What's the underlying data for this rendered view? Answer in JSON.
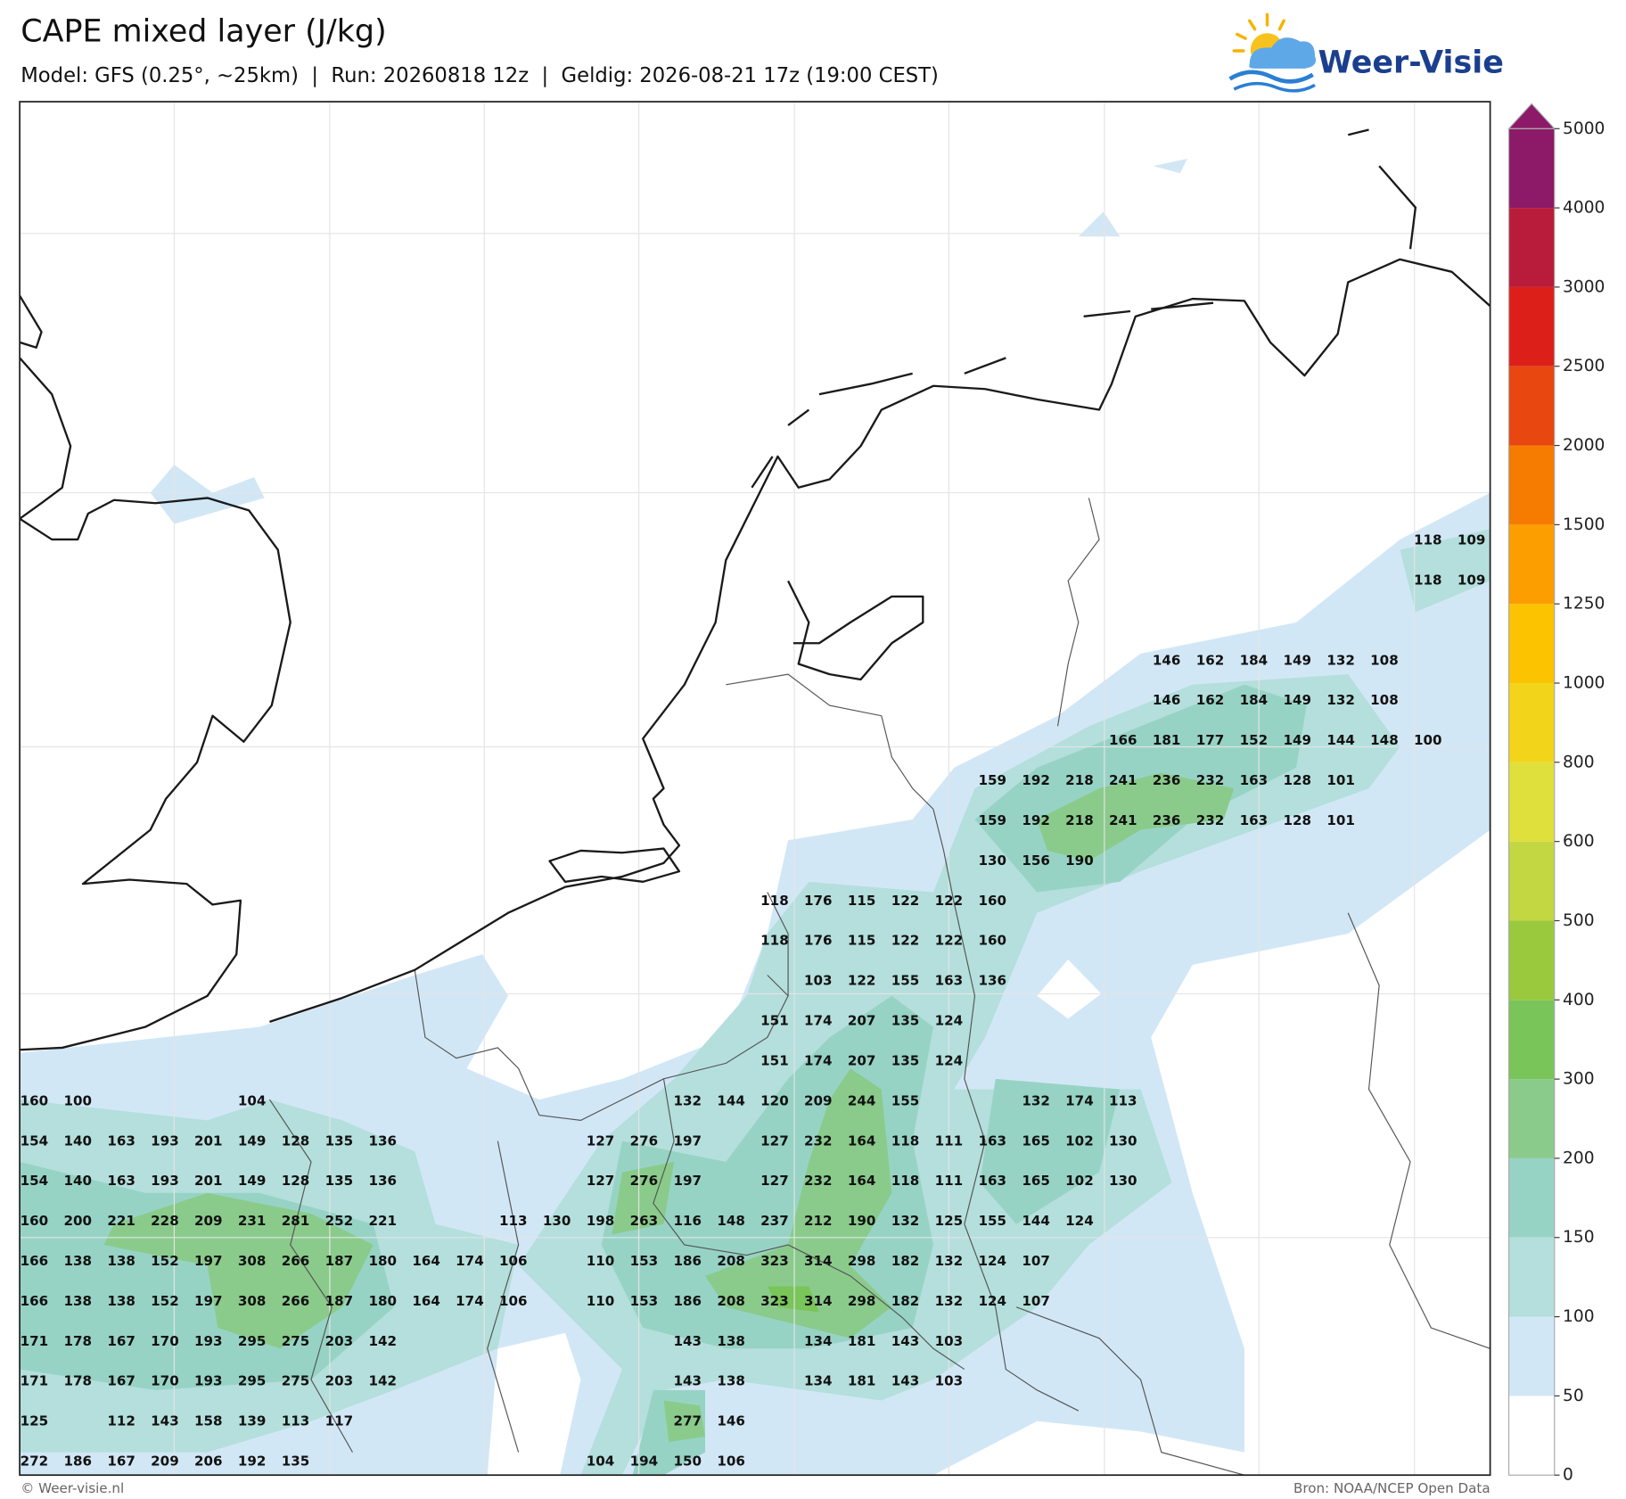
{
  "header": {
    "title": "CAPE mixed layer (J/kg)",
    "subtitle": "Model: GFS (0.25°, ~25km)  |  Run: 20260818 12z  |  Geldig: 2026-08-21 17z (19:00 CEST)"
  },
  "logo": {
    "text": "Weer-Visie"
  },
  "colorbar": {
    "ticks": [
      0,
      50,
      100,
      150,
      200,
      300,
      400,
      500,
      600,
      800,
      1000,
      1250,
      1500,
      2000,
      2500,
      3000,
      4000,
      5000
    ],
    "colors": [
      "#ffffff",
      "#d2e7f6",
      "#b4dfdc",
      "#97d3c5",
      "#8acb8b",
      "#7ac55a",
      "#9bc93e",
      "#c3d743",
      "#dfe03b",
      "#f2d41b",
      "#fcc300",
      "#fc9d00",
      "#f57c00",
      "#e8470f",
      "#dd1f1a",
      "#b91c3a",
      "#8c1a68"
    ],
    "extend_color": "#8c1a68"
  },
  "grid_labels": {
    "rows": [
      [
        null,
        null,
        null,
        null,
        null,
        null,
        null,
        null,
        null,
        null,
        null,
        null,
        null,
        null,
        null,
        null,
        null,
        null,
        null,
        null,
        null,
        null,
        null,
        null,
        null,
        null,
        null,
        null,
        null,
        null,
        null,
        null,
        118,
        109
      ],
      [
        null,
        null,
        null,
        null,
        null,
        null,
        null,
        null,
        null,
        null,
        null,
        null,
        null,
        null,
        null,
        null,
        null,
        null,
        null,
        null,
        null,
        null,
        null,
        null,
        null,
        null,
        null,
        null,
        null,
        null,
        null,
        null,
        118,
        109
      ],
      [
        null,
        null,
        null,
        null,
        null,
        null,
        null,
        null,
        null,
        null,
        null,
        null,
        null,
        null,
        null,
        null,
        null,
        null,
        null,
        null,
        null,
        null,
        null,
        null,
        null,
        null,
        null,
        null,
        null,
        null,
        null,
        null,
        null,
        null
      ],
      [
        null,
        null,
        null,
        null,
        null,
        null,
        null,
        null,
        null,
        null,
        null,
        null,
        null,
        null,
        null,
        null,
        null,
        null,
        null,
        null,
        null,
        null,
        null,
        null,
        null,
        null,
        146,
        162,
        184,
        149,
        132,
        108,
        null,
        null
      ],
      [
        null,
        null,
        null,
        null,
        null,
        null,
        null,
        null,
        null,
        null,
        null,
        null,
        null,
        null,
        null,
        null,
        null,
        null,
        null,
        null,
        null,
        null,
        null,
        null,
        null,
        null,
        146,
        162,
        184,
        149,
        132,
        108,
        null,
        null
      ],
      [
        null,
        null,
        null,
        null,
        null,
        null,
        null,
        null,
        null,
        null,
        null,
        null,
        null,
        null,
        null,
        null,
        null,
        null,
        null,
        null,
        null,
        null,
        null,
        null,
        null,
        166,
        181,
        177,
        152,
        149,
        144,
        148,
        100,
        null
      ],
      [
        null,
        null,
        null,
        null,
        null,
        null,
        null,
        null,
        null,
        null,
        null,
        null,
        null,
        null,
        null,
        null,
        null,
        null,
        null,
        null,
        null,
        null,
        159,
        192,
        218,
        241,
        236,
        232,
        163,
        128,
        101,
        null,
        null,
        null
      ],
      [
        null,
        null,
        null,
        null,
        null,
        null,
        null,
        null,
        null,
        null,
        null,
        null,
        null,
        null,
        null,
        null,
        null,
        null,
        null,
        null,
        null,
        null,
        159,
        192,
        218,
        241,
        236,
        232,
        163,
        128,
        101,
        null,
        null,
        null
      ],
      [
        null,
        null,
        null,
        null,
        null,
        null,
        null,
        null,
        null,
        null,
        null,
        null,
        null,
        null,
        null,
        null,
        null,
        null,
        null,
        null,
        null,
        null,
        130,
        156,
        190,
        null,
        null,
        null,
        null,
        null,
        null,
        null,
        null,
        null
      ],
      [
        null,
        null,
        null,
        null,
        null,
        null,
        null,
        null,
        null,
        null,
        null,
        null,
        null,
        null,
        null,
        null,
        null,
        118,
        176,
        115,
        122,
        122,
        160,
        null,
        null,
        null,
        null,
        null,
        null,
        null,
        null,
        null,
        null,
        null
      ],
      [
        null,
        null,
        null,
        null,
        null,
        null,
        null,
        null,
        null,
        null,
        null,
        null,
        null,
        null,
        null,
        null,
        null,
        118,
        176,
        115,
        122,
        122,
        160,
        null,
        null,
        null,
        null,
        null,
        null,
        null,
        null,
        null,
        null,
        null
      ],
      [
        null,
        null,
        null,
        null,
        null,
        null,
        null,
        null,
        null,
        null,
        null,
        null,
        null,
        null,
        null,
        null,
        null,
        null,
        103,
        122,
        155,
        163,
        136,
        null,
        null,
        null,
        null,
        null,
        null,
        null,
        null,
        null,
        null,
        null
      ],
      [
        null,
        null,
        null,
        null,
        null,
        null,
        null,
        null,
        null,
        null,
        null,
        null,
        null,
        null,
        null,
        null,
        null,
        151,
        174,
        207,
        135,
        124,
        null,
        null,
        null,
        null,
        null,
        null,
        null,
        null,
        null,
        null,
        null,
        null
      ],
      [
        null,
        null,
        null,
        null,
        null,
        null,
        null,
        null,
        null,
        null,
        null,
        null,
        null,
        null,
        null,
        null,
        null,
        151,
        174,
        207,
        135,
        124,
        null,
        null,
        null,
        null,
        null,
        null,
        null,
        null,
        null,
        null,
        null,
        null
      ],
      [
        160,
        100,
        null,
        null,
        null,
        104,
        null,
        null,
        null,
        null,
        null,
        null,
        null,
        null,
        null,
        132,
        144,
        120,
        209,
        244,
        155,
        null,
        null,
        132,
        174,
        113,
        null,
        null,
        null,
        null,
        null,
        null,
        null,
        null
      ],
      [
        154,
        140,
        163,
        193,
        201,
        149,
        128,
        135,
        136,
        null,
        null,
        null,
        null,
        127,
        276,
        197,
        null,
        127,
        232,
        164,
        118,
        111,
        163,
        165,
        102,
        130,
        null,
        null,
        null,
        null,
        null,
        null,
        null,
        null
      ],
      [
        154,
        140,
        163,
        193,
        201,
        149,
        128,
        135,
        136,
        null,
        null,
        null,
        null,
        127,
        276,
        197,
        null,
        127,
        232,
        164,
        118,
        111,
        163,
        165,
        102,
        130,
        null,
        null,
        null,
        null,
        null,
        null,
        null,
        null
      ],
      [
        160,
        200,
        221,
        228,
        209,
        231,
        281,
        252,
        221,
        null,
        null,
        113,
        130,
        198,
        263,
        116,
        148,
        237,
        212,
        190,
        132,
        125,
        155,
        144,
        124,
        null,
        null,
        null,
        null,
        null,
        null,
        null,
        null,
        null
      ],
      [
        166,
        138,
        138,
        152,
        197,
        308,
        266,
        187,
        180,
        164,
        174,
        106,
        null,
        110,
        153,
        186,
        208,
        323,
        314,
        298,
        182,
        132,
        124,
        107,
        null,
        null,
        null,
        null,
        null,
        null,
        null,
        null,
        null,
        null
      ],
      [
        166,
        138,
        138,
        152,
        197,
        308,
        266,
        187,
        180,
        164,
        174,
        106,
        null,
        110,
        153,
        186,
        208,
        323,
        314,
        298,
        182,
        132,
        124,
        107,
        null,
        null,
        null,
        null,
        null,
        null,
        null,
        null,
        null,
        null
      ],
      [
        171,
        178,
        167,
        170,
        193,
        295,
        275,
        203,
        142,
        null,
        null,
        null,
        null,
        null,
        null,
        143,
        138,
        null,
        134,
        181,
        143,
        103,
        null,
        null,
        null,
        null,
        null,
        null,
        null,
        null,
        null,
        null,
        null,
        null
      ],
      [
        171,
        178,
        167,
        170,
        193,
        295,
        275,
        203,
        142,
        null,
        null,
        null,
        null,
        null,
        null,
        143,
        138,
        null,
        134,
        181,
        143,
        103,
        null,
        null,
        null,
        null,
        null,
        null,
        null,
        null,
        null,
        null,
        null,
        null
      ],
      [
        125,
        null,
        112,
        143,
        158,
        139,
        113,
        117,
        null,
        null,
        null,
        null,
        null,
        null,
        null,
        277,
        146,
        null,
        null,
        null,
        null,
        null,
        null,
        null,
        null,
        null,
        null,
        null,
        null,
        null,
        null,
        null,
        null,
        null
      ],
      [
        272,
        186,
        167,
        209,
        206,
        192,
        135,
        null,
        null,
        null,
        null,
        null,
        null,
        104,
        194,
        150,
        106,
        null,
        null,
        null,
        null,
        null,
        null,
        null,
        null,
        null,
        null,
        null,
        null,
        null,
        null,
        null,
        null,
        null
      ]
    ]
  },
  "footer": {
    "left": "© Weer-visie.nl",
    "right": "Bron: NOAA/NCEP Open Data"
  }
}
